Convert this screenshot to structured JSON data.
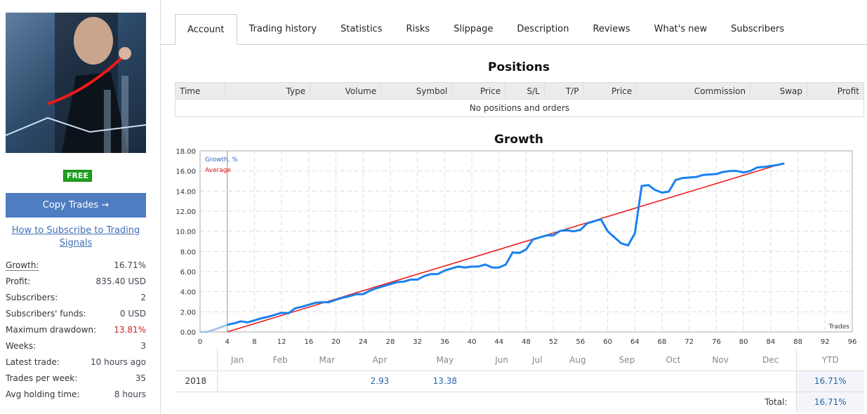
{
  "sidebar": {
    "badge": "FREE",
    "copy_button": "Copy Trades →",
    "howto_link": "How to Subscribe to Trading Signals",
    "stats": [
      {
        "label": "Growth:",
        "value": "16.71%"
      },
      {
        "label": "Profit:",
        "value": "835.40 USD"
      },
      {
        "label": "Subscribers:",
        "value": "2"
      },
      {
        "label": "Subscribers' funds:",
        "value": "0 USD"
      },
      {
        "label": "Maximum drawdown:",
        "value": "13.81%",
        "color": "#cc2222"
      },
      {
        "label": "Weeks:",
        "value": "3"
      },
      {
        "label": "Latest trade:",
        "value": "10 hours ago"
      },
      {
        "label": "Trades per week:",
        "value": "35"
      },
      {
        "label": "Avg holding time:",
        "value": "8 hours"
      }
    ]
  },
  "tabs": [
    "Account",
    "Trading history",
    "Statistics",
    "Risks",
    "Slippage",
    "Description",
    "Reviews",
    "What's new",
    "Subscribers"
  ],
  "positions": {
    "title": "Positions",
    "columns": [
      "Time",
      "Type",
      "Volume",
      "Symbol",
      "Price",
      "S/L",
      "T/P",
      "Price",
      "Commission",
      "Swap",
      "Profit"
    ],
    "empty": "No positions and orders"
  },
  "growth_title": "Growth",
  "chart_data": {
    "type": "line",
    "title": "Growth",
    "xlabel": "Trades",
    "ylabel": "",
    "xlim": [
      0,
      96
    ],
    "ylim": [
      0,
      18
    ],
    "xticks": [
      0,
      4,
      8,
      12,
      16,
      20,
      24,
      28,
      32,
      36,
      40,
      44,
      48,
      52,
      56,
      60,
      64,
      68,
      72,
      76,
      80,
      84,
      88,
      92,
      96
    ],
    "yticks": [
      "0.00",
      "2.00",
      "4.00",
      "6.00",
      "8.00",
      "10.00",
      "12.00",
      "14.00",
      "16.00",
      "18.00"
    ],
    "legend": [
      "Growth, %",
      "Average"
    ],
    "legend_position": "top-left",
    "grid": true,
    "series": [
      {
        "name": "Growth, %",
        "color": "#1a82f0",
        "pre_color": "#a8c4e4",
        "pre_until": 4,
        "values": [
          0,
          0,
          0.2,
          0.45,
          0.7,
          0.85,
          1.05,
          0.95,
          1.15,
          1.35,
          1.5,
          1.7,
          1.9,
          1.85,
          2.35,
          2.5,
          2.7,
          2.9,
          2.95,
          2.95,
          3.2,
          3.4,
          3.55,
          3.75,
          3.75,
          4.1,
          4.35,
          4.55,
          4.75,
          4.95,
          5.0,
          5.2,
          5.2,
          5.55,
          5.75,
          5.75,
          6.1,
          6.3,
          6.5,
          6.4,
          6.5,
          6.5,
          6.7,
          6.4,
          6.4,
          6.7,
          7.9,
          7.85,
          8.2,
          9.2,
          9.4,
          9.6,
          9.6,
          10.05,
          10.1,
          10.0,
          10.15,
          10.8,
          11.0,
          11.2,
          10.0,
          9.4,
          8.8,
          8.6,
          9.8,
          14.5,
          14.6,
          14.1,
          13.85,
          13.95,
          15.1,
          15.3,
          15.35,
          15.4,
          15.6,
          15.65,
          15.7,
          15.9,
          16.0,
          16.0,
          15.85,
          16.0,
          16.35,
          16.4,
          16.5,
          16.6,
          16.75
        ]
      },
      {
        "name": "Average",
        "color": "#ee1111",
        "x": [
          4,
          86
        ],
        "values": [
          0,
          16.8
        ]
      }
    ]
  },
  "monthly": {
    "months": [
      "Jan",
      "Feb",
      "Mar",
      "Apr",
      "May",
      "Jun",
      "Jul",
      "Aug",
      "Sep",
      "Oct",
      "Nov",
      "Dec"
    ],
    "ytd_label": "YTD",
    "year": "2018",
    "values": [
      "",
      "",
      "",
      "2.93",
      "13.38",
      "",
      "",
      "",
      "",
      "",
      "",
      ""
    ],
    "ytd": "16.71%",
    "total_label": "Total:",
    "total": "16.71%"
  }
}
